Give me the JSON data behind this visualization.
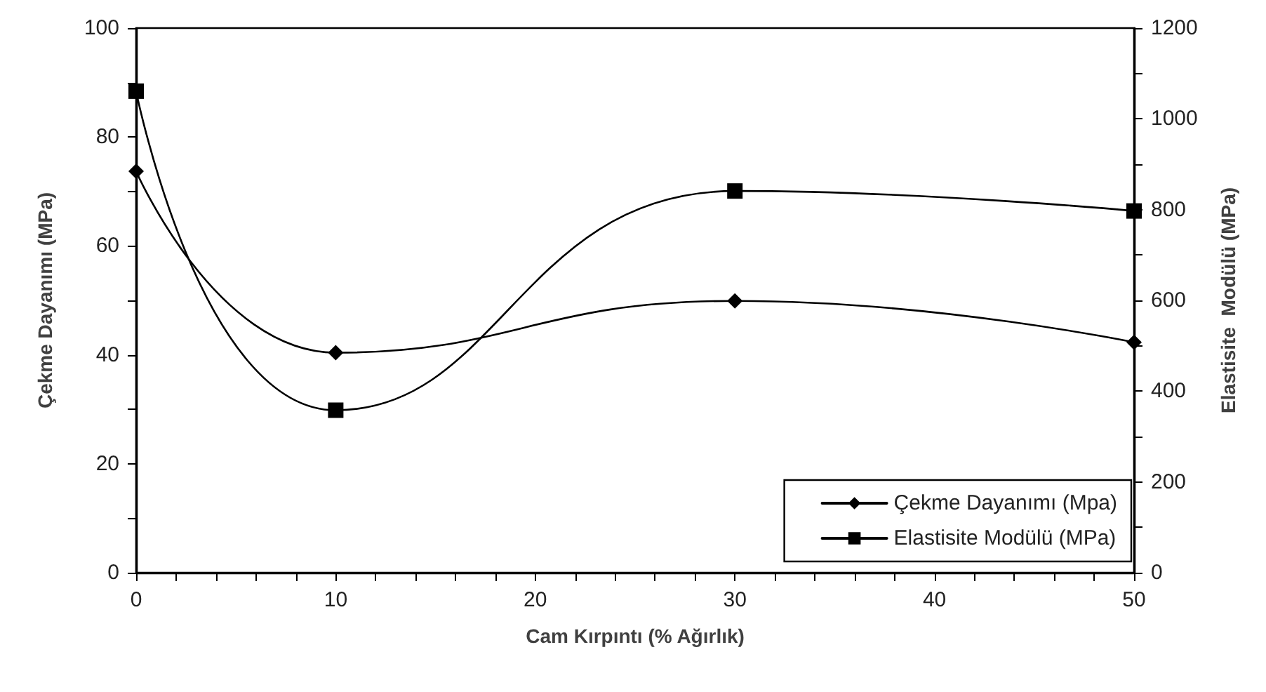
{
  "chart_data": {
    "type": "line",
    "xlabel": "Cam Kırpıntı (% Ağırlık)",
    "ylabel": "Çekme Dayanımı (MPa)",
    "y2label": "Elastisite  Modülü (MPa)",
    "x": [
      0,
      10,
      30,
      50
    ],
    "series": [
      {
        "name": "Çekme Dayanımı (Mpa)",
        "color": "#000000",
        "marker": "diamond",
        "values": [
          73.7,
          40.4,
          49.9,
          42.3
        ]
      },
      {
        "name": "Elastisite Modülü (MPa)",
        "color": "#000000",
        "marker": "square",
        "axis": "y2",
        "values": [
          1061,
          358,
          841,
          797
        ]
      }
    ],
    "xlim": [
      0,
      50
    ],
    "xticks": [
      0,
      {
        "value": 2,
        "label": null
      },
      {
        "value": 4,
        "label": null
      },
      {
        "value": 6,
        "label": null
      },
      {
        "value": 8,
        "label": null
      },
      10,
      {
        "value": 12,
        "label": null
      },
      {
        "value": 14,
        "label": null
      },
      {
        "value": 16,
        "label": null
      },
      {
        "value": 18,
        "label": null
      },
      20,
      {
        "value": 22,
        "label": null
      },
      {
        "value": 24,
        "label": null
      },
      {
        "value": 26,
        "label": null
      },
      {
        "value": 28,
        "label": null
      },
      30,
      {
        "value": 32,
        "label": null
      },
      {
        "value": 34,
        "label": null
      },
      {
        "value": 36,
        "label": null
      },
      {
        "value": 38,
        "label": null
      },
      40,
      {
        "value": 42,
        "label": null
      },
      {
        "value": 44,
        "label": null
      },
      {
        "value": 46,
        "label": null
      },
      {
        "value": 48,
        "label": null
      },
      50
    ],
    "ylim": [
      0,
      100
    ],
    "yticks": [
      0,
      {
        "value": 10,
        "label": null
      },
      20,
      {
        "value": 30,
        "label": null
      },
      40,
      {
        "value": 50,
        "label": null
      },
      60,
      {
        "value": 70,
        "label": null
      },
      80,
      {
        "value": 90,
        "label": null
      },
      100
    ],
    "y2lim": [
      0,
      1200
    ],
    "y2ticks": [
      0,
      {
        "value": 100,
        "label": null
      },
      200,
      {
        "value": 300,
        "label": null
      },
      400,
      {
        "value": 500,
        "label": null
      },
      600,
      {
        "value": 700,
        "label": null
      },
      800,
      {
        "value": 900,
        "label": null
      },
      1000,
      {
        "value": 1100,
        "label": null
      },
      1200
    ],
    "grid": false,
    "legend": "bottom right",
    "line_style": "solid"
  }
}
